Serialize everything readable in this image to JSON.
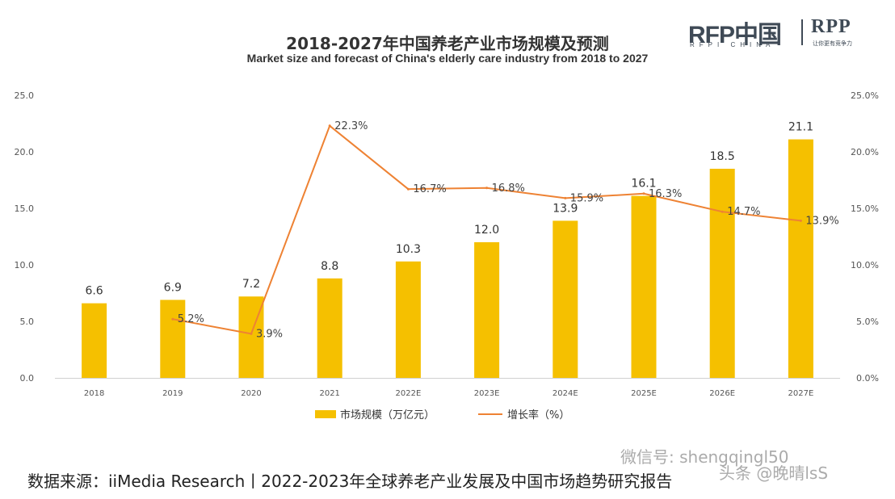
{
  "chart_data": {
    "type": "bar",
    "title": "2018-2027年中国养老产业市场规模及预测",
    "subtitle": "Market size and forecast of China's elderly care industry from 2018 to 2027",
    "categories": [
      "2018",
      "2019",
      "2020",
      "2021",
      "2022E",
      "2023E",
      "2024E",
      "2025E",
      "2026E",
      "2027E"
    ],
    "series": [
      {
        "name": "市场规模（万亿元）",
        "type": "bar",
        "axis": "left",
        "color": "#f5c000",
        "values": [
          6.6,
          6.9,
          7.2,
          8.8,
          10.3,
          12.0,
          13.9,
          16.1,
          18.5,
          21.1
        ],
        "labels": [
          "6.6",
          "6.9",
          "7.2",
          "8.8",
          "10.3",
          "12.0",
          "13.9",
          "16.1",
          "18.5",
          "21.1"
        ]
      },
      {
        "name": "增长率（%）",
        "type": "line",
        "axis": "right",
        "color": "#ee8233",
        "values": [
          null,
          5.2,
          3.9,
          22.3,
          16.7,
          16.8,
          15.9,
          16.3,
          14.7,
          13.9
        ],
        "labels": [
          "",
          "5.2%",
          "3.9%",
          "22.3%",
          "16.7%",
          "16.8%",
          "15.9%",
          "16.3%",
          "14.7%",
          "13.9%"
        ]
      }
    ],
    "y_left": {
      "min": 0,
      "max": 25,
      "ticks": [
        "0.0",
        "5.0",
        "10.0",
        "15.0",
        "20.0",
        "25.0"
      ]
    },
    "y_right": {
      "min": 0,
      "max": 25,
      "ticks": [
        "0.0%",
        "5.0%",
        "10.0%",
        "15.0%",
        "20.0%",
        "25.0%"
      ]
    },
    "grid": false,
    "legend": "bottom-center"
  },
  "logo": {
    "main": "RFP中国",
    "sub": "RFPI CHINA",
    "right": "RPP",
    "right_sub": "让你更有竞争力"
  },
  "source": "数据来源：iiMedia Research丨2022-2023年全球养老产业发展及中国市场趋势研究报告",
  "watermark": {
    "wechat": "微信号: shengqingl50",
    "toutiao": "头条 @晚晴lsS"
  }
}
